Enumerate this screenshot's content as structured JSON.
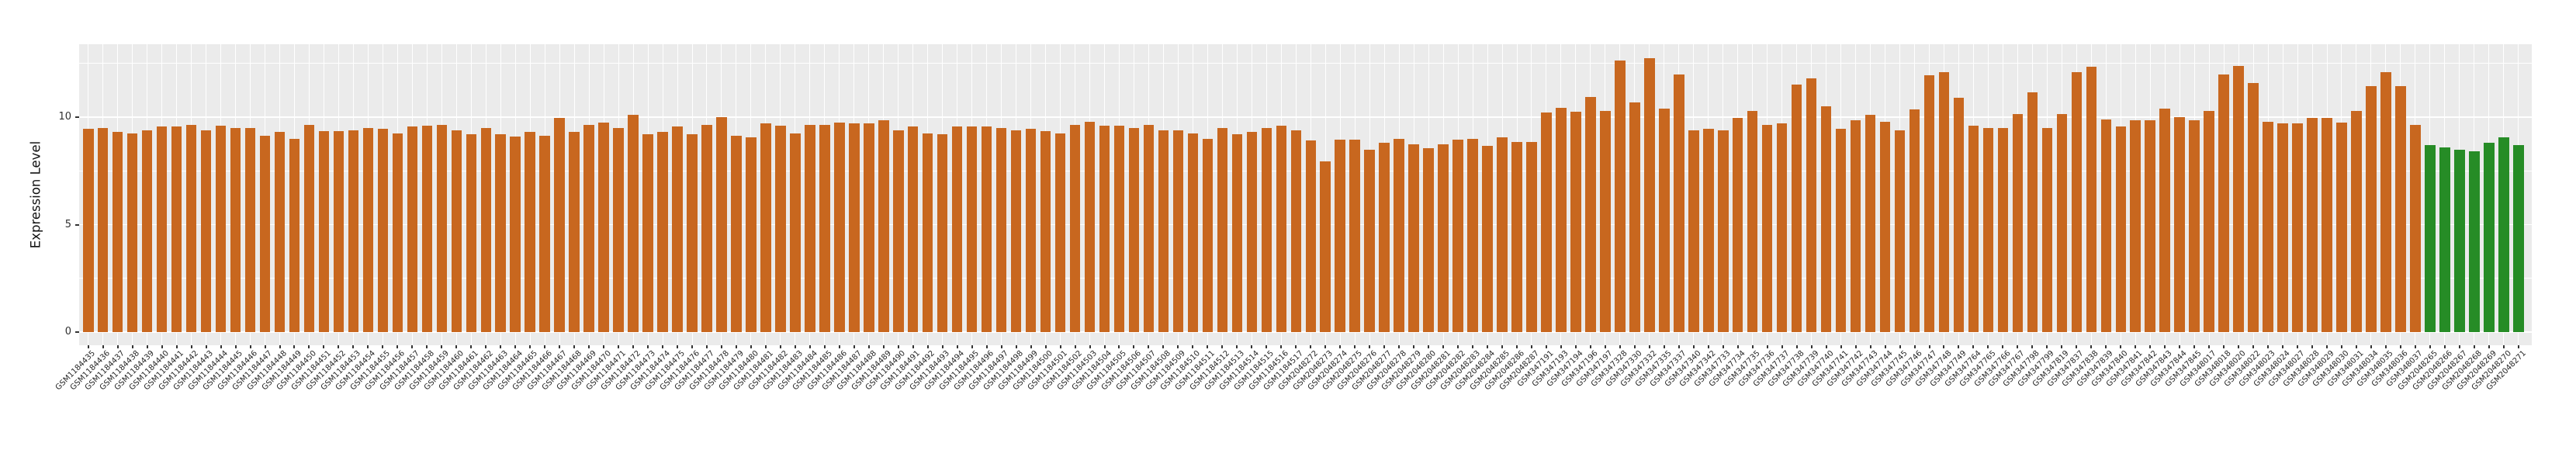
{
  "chart_data": {
    "type": "bar",
    "ylabel": "Expression Level",
    "xlabel": "",
    "yticks": [
      0,
      5,
      10
    ],
    "ylim": [
      -0.6,
      13.4
    ],
    "grid": {
      "major": [
        0,
        5,
        10
      ],
      "minor": [
        2.5,
        7.5,
        12.5
      ],
      "vertical_per_bar": true
    },
    "legend_position": "none",
    "panel_background": "#EBEBEB",
    "gridline_color": "#FFFFFF",
    "bar_colors": {
      "orange": "#C8671F",
      "green": "#268C26"
    },
    "green_samples": [
      "GSM2048265",
      "GSM2048266",
      "GSM2048267",
      "GSM2048268",
      "GSM2048269",
      "GSM2048270",
      "GSM2048271"
    ],
    "categories": [
      "GSM1184435",
      "GSM1184436",
      "GSM1184437",
      "GSM1184438",
      "GSM1184439",
      "GSM1184440",
      "GSM1184441",
      "GSM1184442",
      "GSM1184443",
      "GSM1184444",
      "GSM1184445",
      "GSM1184446",
      "GSM1184447",
      "GSM1184448",
      "GSM1184449",
      "GSM1184450",
      "GSM1184451",
      "GSM1184452",
      "GSM1184453",
      "GSM1184454",
      "GSM1184455",
      "GSM1184456",
      "GSM1184457",
      "GSM1184458",
      "GSM1184459",
      "GSM1184460",
      "GSM1184461",
      "GSM1184462",
      "GSM1184463",
      "GSM1184464",
      "GSM1184465",
      "GSM1184466",
      "GSM1184467",
      "GSM1184468",
      "GSM1184469",
      "GSM1184470",
      "GSM1184471",
      "GSM1184472",
      "GSM1184473",
      "GSM1184474",
      "GSM1184475",
      "GSM1184476",
      "GSM1184477",
      "GSM1184478",
      "GSM1184479",
      "GSM1184480",
      "GSM1184481",
      "GSM1184482",
      "GSM1184483",
      "GSM1184484",
      "GSM1184485",
      "GSM1184486",
      "GSM1184487",
      "GSM1184488",
      "GSM1184489",
      "GSM1184490",
      "GSM1184491",
      "GSM1184492",
      "GSM1184493",
      "GSM1184494",
      "GSM1184495",
      "GSM1184496",
      "GSM1184497",
      "GSM1184498",
      "GSM1184499",
      "GSM1184500",
      "GSM1184501",
      "GSM1184502",
      "GSM1184503",
      "GSM1184504",
      "GSM1184505",
      "GSM1184506",
      "GSM1184507",
      "GSM1184508",
      "GSM1184509",
      "GSM1184510",
      "GSM1184511",
      "GSM1184512",
      "GSM1184513",
      "GSM1184514",
      "GSM1184515",
      "GSM1184516",
      "GSM1184517",
      "GSM2048272",
      "GSM2048273",
      "GSM2048274",
      "GSM2048275",
      "GSM2048276",
      "GSM2048277",
      "GSM2048278",
      "GSM2048279",
      "GSM2048280",
      "GSM2048281",
      "GSM2048282",
      "GSM2048283",
      "GSM2048284",
      "GSM2048285",
      "GSM2048286",
      "GSM2048287",
      "GSM347191",
      "GSM347193",
      "GSM347194",
      "GSM347196",
      "GSM347197",
      "GSM347328",
      "GSM347330",
      "GSM347332",
      "GSM347335",
      "GSM347337",
      "GSM347340",
      "GSM347342",
      "GSM347733",
      "GSM347734",
      "GSM347735",
      "GSM347736",
      "GSM347737",
      "GSM347738",
      "GSM347739",
      "GSM347740",
      "GSM347741",
      "GSM347742",
      "GSM347743",
      "GSM347744",
      "GSM347745",
      "GSM347746",
      "GSM347747",
      "GSM347748",
      "GSM347749",
      "GSM347764",
      "GSM347765",
      "GSM347766",
      "GSM347767",
      "GSM347798",
      "GSM347799",
      "GSM347819",
      "GSM347837",
      "GSM347838",
      "GSM347839",
      "GSM347840",
      "GSM347841",
      "GSM347842",
      "GSM347843",
      "GSM347844",
      "GSM347845",
      "GSM348017",
      "GSM348018",
      "GSM348020",
      "GSM348022",
      "GSM348023",
      "GSM348024",
      "GSM348027",
      "GSM348028",
      "GSM348029",
      "GSM348030",
      "GSM348031",
      "GSM348034",
      "GSM348035",
      "GSM348036",
      "GSM348037",
      "GSM2048265",
      "GSM2048266",
      "GSM2048267",
      "GSM2048268",
      "GSM2048269",
      "GSM2048270",
      "GSM2048271"
    ],
    "values": [
      9.45,
      9.5,
      9.3,
      9.25,
      9.4,
      9.55,
      9.55,
      9.65,
      9.4,
      9.6,
      9.5,
      9.5,
      9.15,
      9.3,
      9.0,
      9.65,
      9.35,
      9.35,
      9.4,
      9.5,
      9.45,
      9.25,
      9.55,
      9.6,
      9.65,
      9.4,
      9.2,
      9.5,
      9.2,
      9.1,
      9.3,
      9.15,
      9.95,
      9.3,
      9.65,
      9.75,
      9.5,
      10.1,
      9.2,
      9.3,
      9.55,
      9.2,
      9.65,
      10.0,
      9.15,
      9.05,
      9.7,
      9.6,
      9.25,
      9.65,
      9.65,
      9.75,
      9.7,
      9.7,
      9.85,
      9.4,
      9.55,
      9.25,
      9.2,
      9.55,
      9.55,
      9.55,
      9.5,
      9.4,
      9.45,
      9.35,
      9.25,
      9.65,
      9.8,
      9.6,
      9.6,
      9.5,
      9.65,
      9.4,
      9.4,
      9.25,
      9.0,
      9.5,
      9.2,
      9.3,
      9.5,
      9.6,
      9.4,
      8.9,
      7.95,
      8.95,
      8.95,
      8.5,
      8.8,
      9.0,
      8.75,
      8.55,
      8.75,
      8.95,
      9.0,
      8.65,
      9.05,
      8.85,
      8.85,
      10.2,
      10.45,
      10.25,
      10.95,
      10.3,
      12.65,
      10.7,
      12.75,
      10.4,
      12.0,
      9.4,
      9.45,
      9.4,
      9.95,
      10.3,
      9.65,
      9.7,
      11.5,
      11.8,
      10.5,
      9.45,
      9.85,
      10.1,
      9.8,
      9.4,
      10.35,
      11.95,
      12.1,
      10.9,
      9.6,
      9.5,
      9.5,
      10.15,
      11.15,
      9.5,
      10.15,
      12.1,
      12.35,
      9.9,
      9.55,
      9.85,
      9.85,
      10.4,
      10.0,
      9.85,
      10.3,
      12.0,
      12.4,
      11.6,
      9.8,
      9.7,
      9.7,
      9.95,
      9.95,
      9.75,
      10.3,
      11.45,
      12.1,
      11.45,
      9.65,
      8.7,
      8.6,
      8.5,
      8.4,
      8.8,
      9.05,
      8.7
    ]
  }
}
